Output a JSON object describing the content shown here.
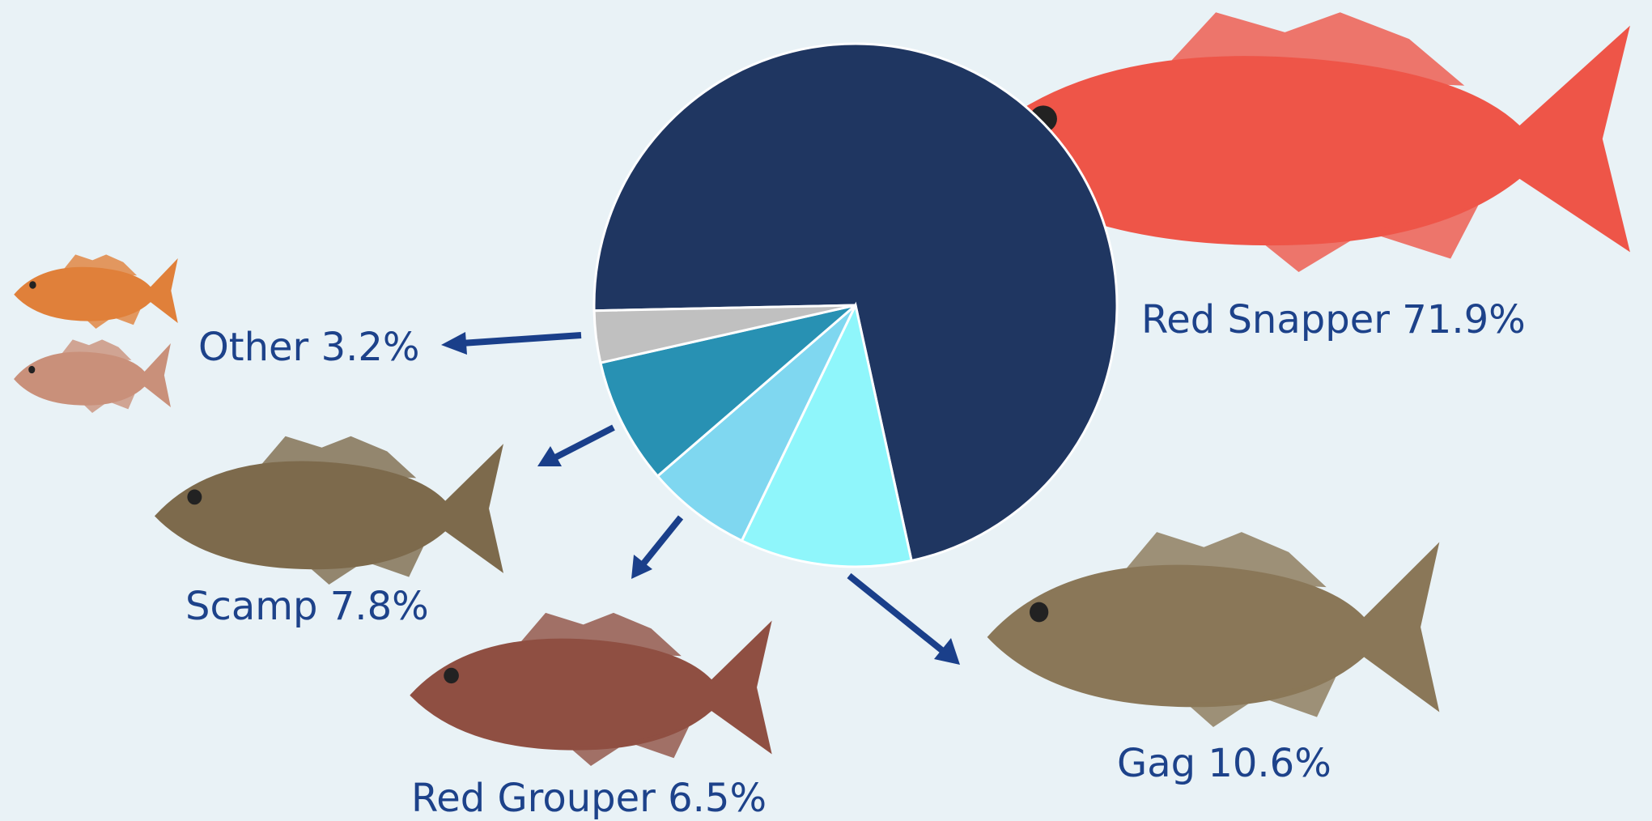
{
  "chart_data": {
    "type": "pie",
    "categories": [
      "Red Snapper",
      "Gag",
      "Red Grouper",
      "Scamp",
      "Other"
    ],
    "values": [
      71.9,
      10.6,
      6.5,
      7.8,
      3.2
    ],
    "value_labels": [
      "71.9%",
      "10.6%",
      "6.5%",
      "7.8%",
      "3.2%"
    ],
    "colors": [
      "#1f3661",
      "#8ff6fb",
      "#7fd7f0",
      "#2891b3",
      "#c0c0c0"
    ]
  }
}
